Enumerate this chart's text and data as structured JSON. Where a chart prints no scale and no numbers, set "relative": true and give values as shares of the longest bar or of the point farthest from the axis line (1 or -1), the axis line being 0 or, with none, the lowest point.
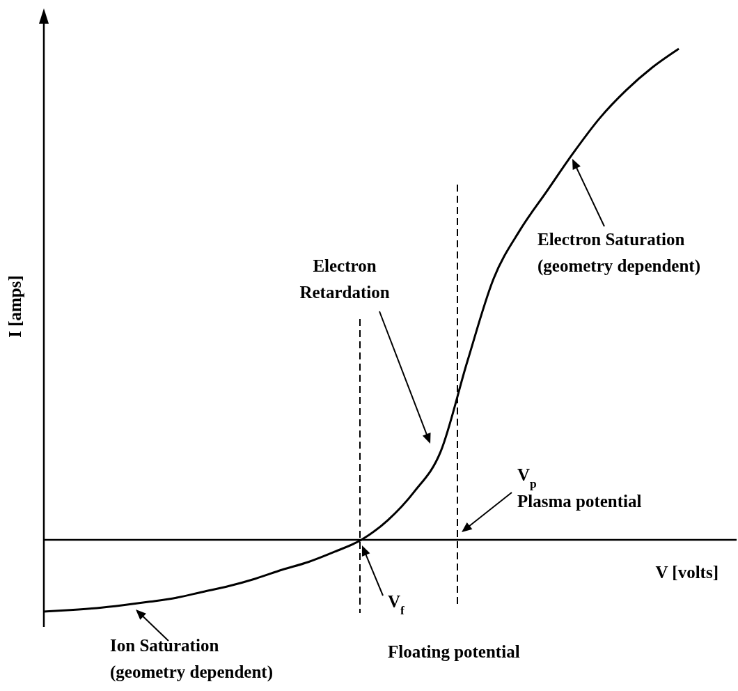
{
  "chart_data": {
    "type": "line",
    "relative": true,
    "xlabel": "V [volts]",
    "ylabel": "I [amps]",
    "categories": [
      null,
      null,
      null,
      null,
      null,
      null,
      null,
      null,
      null,
      null,
      null,
      null,
      null,
      null,
      null,
      null,
      null,
      null,
      null,
      null,
      null,
      null,
      null,
      null,
      null
    ],
    "series": [
      {
        "color": "#000000",
        "values": [
          -0.146,
          -0.143,
          -0.139,
          -0.133,
          -0.126,
          -0.118,
          -0.106,
          -0.094,
          -0.079,
          -0.061,
          -0.045,
          -0.024,
          0,
          0.04,
          0.098,
          0.18,
          0.362,
          0.532,
          0.631,
          0.709,
          0.787,
          0.858,
          0.915,
          0.962,
          1
        ]
      }
    ],
    "annotations": [
      "Electron\nRetardation",
      "Electron Saturation\n(geometry dependent)",
      "Ion Saturation\n(geometry dependent)",
      "V$_{f}$\nFloating potential",
      "V$_{p}$\nPlasma potential"
    ]
  }
}
